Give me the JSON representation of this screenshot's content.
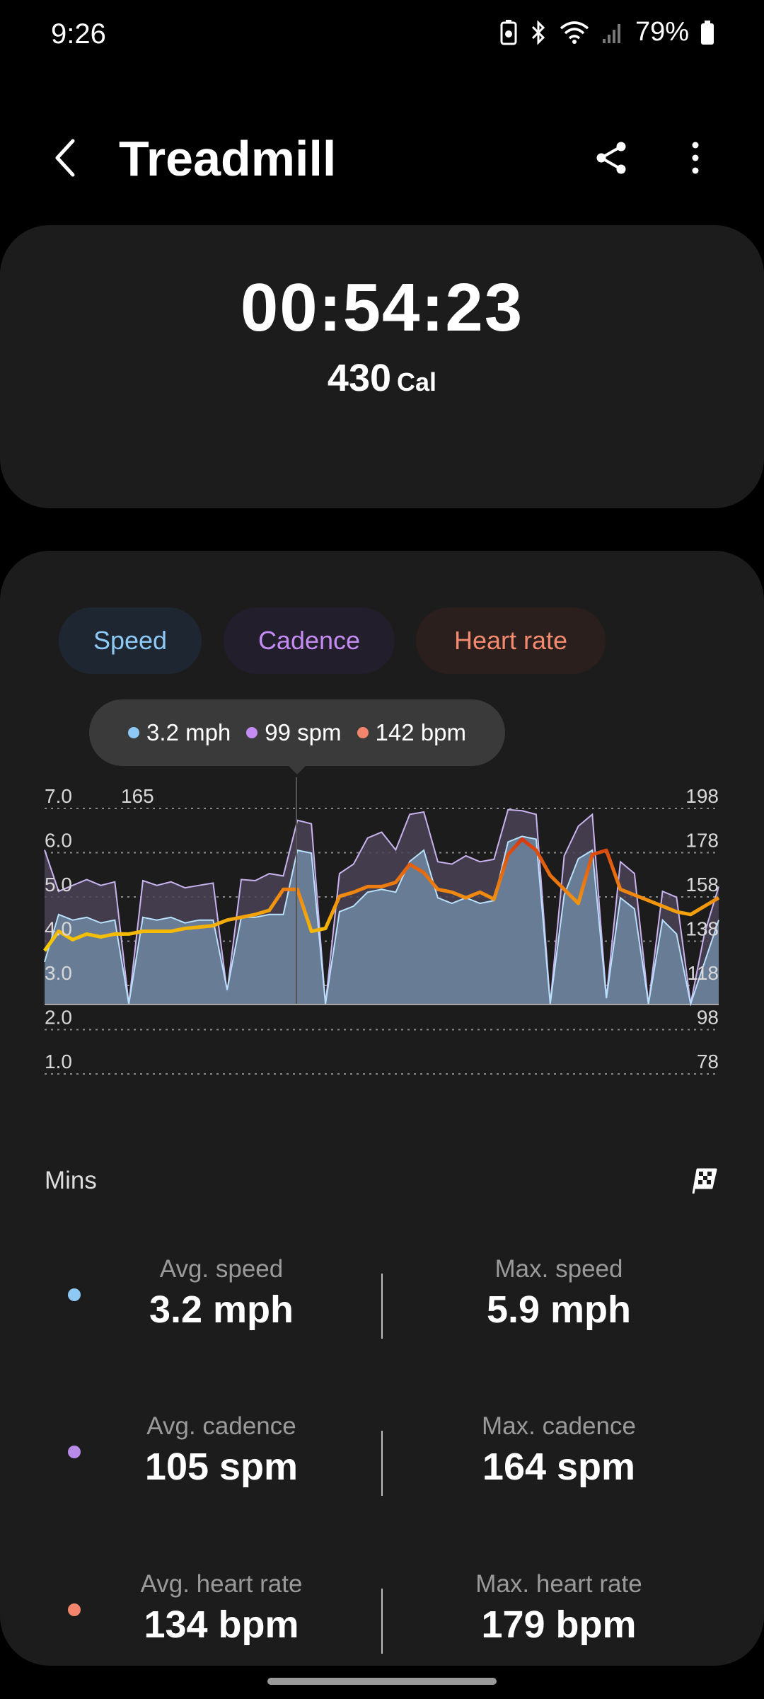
{
  "status_bar": {
    "time": "9:26",
    "battery": "79%"
  },
  "header": {
    "title": "Treadmill",
    "icons": [
      "back-icon",
      "share-icon",
      "more-vert-icon"
    ]
  },
  "summary": {
    "duration": "00:54:23",
    "calories": "430",
    "calories_unit": "Cal"
  },
  "chips": {
    "speed": "Speed",
    "cadence": "Cadence",
    "heart_rate": "Heart rate"
  },
  "tooltip": {
    "speed": "3.2 mph",
    "cadence": "99 spm",
    "heart_rate": "142 bpm"
  },
  "colors": {
    "speed": "#8ec9f5",
    "cadence": "#c48cf2",
    "heart_rate": "#f2856b",
    "speed_fill": "#6b7f99",
    "cadence_fill": "#4a4256",
    "hr_low": "#f5d000",
    "hr_high": "#d63a10"
  },
  "chart_data": {
    "type": "area",
    "x_label": "Mins",
    "left_axis_unit": "mph",
    "middle_axis_unit": "spm",
    "right_axis_unit": "bpm",
    "speed_ticks": [
      "7.0",
      "6.0",
      "5.0",
      "4.0",
      "3.0",
      "2.0",
      "1.0"
    ],
    "cadence_ticks": [
      "165"
    ],
    "hr_ticks": [
      "198",
      "178",
      "158",
      "138",
      "118",
      "98",
      "78"
    ],
    "speed_range": [
      0,
      7.0
    ],
    "hr_range": [
      58,
      198
    ],
    "cadence_range": [
      0,
      165
    ],
    "grid": true,
    "series": [
      {
        "name": "Speed",
        "unit": "mph",
        "values": [
          1.5,
          3.2,
          3.0,
          3.1,
          2.9,
          3.0,
          0.0,
          3.1,
          3.0,
          3.1,
          2.9,
          3.0,
          3.0,
          0.5,
          3.1,
          3.1,
          3.2,
          3.2,
          5.5,
          5.4,
          0.0,
          3.3,
          3.5,
          4.0,
          4.1,
          4.0,
          5.1,
          5.5,
          3.8,
          3.6,
          3.8,
          3.6,
          3.7,
          5.8,
          6.0,
          5.9,
          0.0,
          3.9,
          5.2,
          5.5,
          0.2,
          3.8,
          3.4,
          0.0,
          3.0,
          2.5,
          0.0,
          1.5,
          3.0
        ]
      },
      {
        "name": "Cadence",
        "unit": "spm",
        "values": [
          130,
          95,
          100,
          105,
          100,
          103,
          0,
          104,
          100,
          103,
          98,
          100,
          102,
          10,
          105,
          104,
          110,
          108,
          155,
          152,
          0,
          110,
          118,
          140,
          145,
          130,
          160,
          162,
          120,
          118,
          125,
          120,
          122,
          164,
          163,
          160,
          0,
          125,
          150,
          160,
          5,
          120,
          110,
          0,
          95,
          90,
          0,
          60,
          99
        ]
      },
      {
        "name": "Heart rate",
        "unit": "bpm",
        "values": [
          96,
          110,
          104,
          108,
          106,
          108,
          108,
          110,
          110,
          110,
          112,
          113,
          114,
          118,
          120,
          122,
          125,
          140,
          140,
          110,
          112,
          135,
          138,
          142,
          142,
          145,
          158,
          152,
          140,
          138,
          134,
          138,
          133,
          165,
          176,
          168,
          150,
          140,
          130,
          165,
          168,
          140,
          136,
          132,
          128,
          124,
          122,
          128,
          134
        ]
      }
    ]
  },
  "stats": {
    "avg_speed_label": "Avg. speed",
    "avg_speed": "3.2 mph",
    "max_speed_label": "Max. speed",
    "max_speed": "5.9 mph",
    "avg_cadence_label": "Avg. cadence",
    "avg_cadence": "105 spm",
    "max_cadence_label": "Max. cadence",
    "max_cadence": "164 spm",
    "avg_hr_label": "Avg. heart rate",
    "avg_hr": "134 bpm",
    "max_hr_label": "Max. heart rate",
    "max_hr": "179 bpm"
  }
}
